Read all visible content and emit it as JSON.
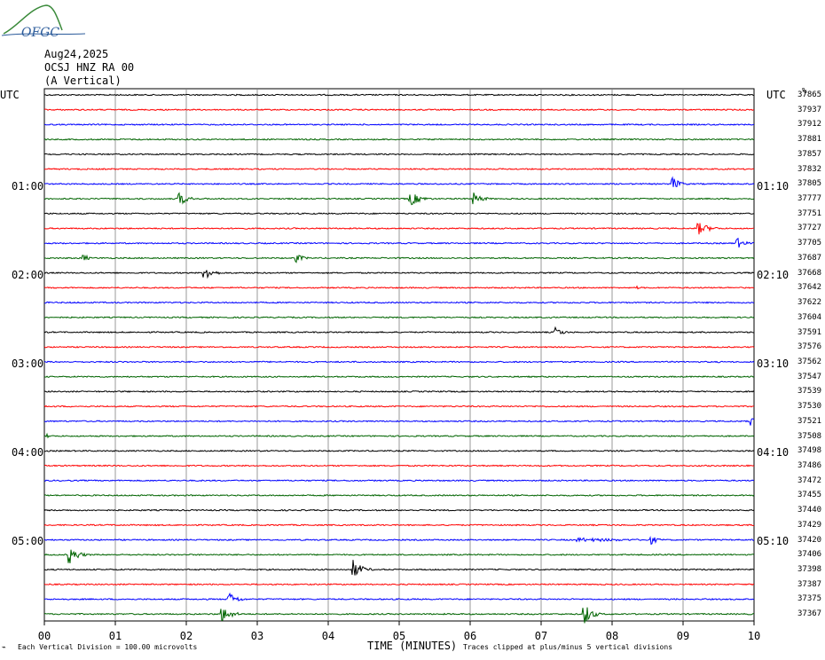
{
  "logo": {
    "text": "OFGC"
  },
  "header": {
    "date": "Aug24,2025",
    "station": "OCSJ HNZ RA 00",
    "component": "(A Vertical)"
  },
  "left_axis_label": "UTC",
  "right_axis_label": "UTC",
  "right_scale_label": "%",
  "left_time_labels": [
    "01:00",
    "02:00",
    "03:00",
    "04:00",
    "05:00"
  ],
  "right_time_labels": [
    "01:10",
    "02:10",
    "03:10",
    "04:10",
    "05:10"
  ],
  "footer": {
    "left_note": "Each Vertical Division =  100.00 microvolts",
    "xlabel": "TIME (MINUTES)",
    "right_note": "Traces clipped at plus/minus 5 vertical divisions"
  },
  "colors": {
    "black": "#000000",
    "red": "#ff0000",
    "blue": "#0000ff",
    "green": "#006400",
    "grid": "#808080"
  },
  "chart_data": {
    "type": "line",
    "x_ticks": [
      "00",
      "01",
      "02",
      "03",
      "04",
      "05",
      "06",
      "07",
      "08",
      "09",
      "10"
    ],
    "xlim": [
      0,
      10
    ],
    "trace_color_cycle": [
      "black",
      "red",
      "blue",
      "green"
    ],
    "trace_counts": [
      37865,
      37937,
      37912,
      37881,
      37857,
      37832,
      37805,
      37777,
      37751,
      37727,
      37705,
      37687,
      37668,
      37642,
      37622,
      37604,
      37591,
      37576,
      37562,
      37547,
      37539,
      37530,
      37521,
      37508,
      37498,
      37486,
      37472,
      37455,
      37440,
      37429,
      37420,
      37406,
      37398,
      37387,
      37375,
      37367
    ],
    "events": [
      {
        "trace": 0,
        "minute": 3.0,
        "amp": 1.0,
        "dur": 0.1
      },
      {
        "trace": 4,
        "minute": 8.9,
        "amp": 0.6,
        "dur": 0.3
      },
      {
        "trace": 5,
        "minute": 3.7,
        "amp": 0.5,
        "dur": 0.1
      },
      {
        "trace": 6,
        "minute": 8.85,
        "amp": 8.0,
        "dur": 0.3
      },
      {
        "trace": 7,
        "minute": 1.9,
        "amp": 8.0,
        "dur": 0.35
      },
      {
        "trace": 7,
        "minute": 5.15,
        "amp": 9.0,
        "dur": 0.4
      },
      {
        "trace": 7,
        "minute": 6.05,
        "amp": 7.0,
        "dur": 0.35
      },
      {
        "trace": 9,
        "minute": 9.2,
        "amp": 8.0,
        "dur": 0.45
      },
      {
        "trace": 9,
        "minute": 8.05,
        "amp": 0.6,
        "dur": 0.1
      },
      {
        "trace": 10,
        "minute": 9.75,
        "amp": 7.0,
        "dur": 0.3
      },
      {
        "trace": 11,
        "minute": 0.55,
        "amp": 5.0,
        "dur": 0.2
      },
      {
        "trace": 11,
        "minute": 3.55,
        "amp": 5.0,
        "dur": 0.3
      },
      {
        "trace": 12,
        "minute": 2.25,
        "amp": 11.0,
        "dur": 0.3
      },
      {
        "trace": 13,
        "minute": 8.35,
        "amp": 3.0,
        "dur": 0.05
      },
      {
        "trace": 15,
        "minute": 7.15,
        "amp": 1.0,
        "dur": 0.4
      },
      {
        "trace": 16,
        "minute": 7.2,
        "amp": 6.0,
        "dur": 0.3
      },
      {
        "trace": 22,
        "minute": 9.95,
        "amp": 9.0,
        "dur": 0.1
      },
      {
        "trace": 23,
        "minute": 0.05,
        "amp": 4.0,
        "dur": 0.1
      },
      {
        "trace": 30,
        "minute": 7.5,
        "amp": 2.5,
        "dur": 2.4
      },
      {
        "trace": 30,
        "minute": 8.55,
        "amp": 5.0,
        "dur": 0.3
      },
      {
        "trace": 31,
        "minute": 0.35,
        "amp": 11.0,
        "dur": 0.35
      },
      {
        "trace": 32,
        "minute": 4.35,
        "amp": 11.0,
        "dur": 0.35
      },
      {
        "trace": 34,
        "minute": 2.6,
        "amp": 8.0,
        "dur": 0.35
      },
      {
        "trace": 35,
        "minute": 2.5,
        "amp": 9.0,
        "dur": 0.4
      },
      {
        "trace": 35,
        "minute": 7.6,
        "amp": 14.0,
        "dur": 0.3
      }
    ]
  }
}
